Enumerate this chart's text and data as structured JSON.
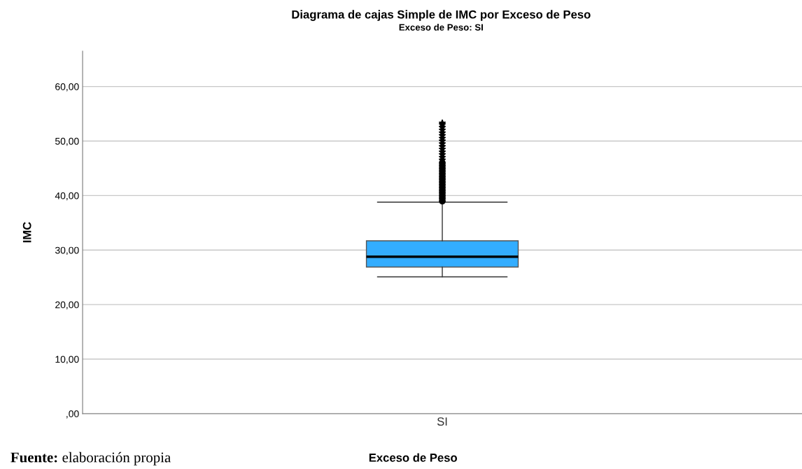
{
  "chart_data": {
    "type": "box",
    "title": "Diagrama de cajas Simple de IMC por Exceso de Peso",
    "subtitle": "Exceso de Peso: SI",
    "xlabel": "Exceso de Peso",
    "ylabel": "IMC",
    "categories": [
      "SI"
    ],
    "color": "#33adff",
    "boxes": [
      {
        "low": 25.1,
        "q1": 26.9,
        "median": 28.8,
        "q3": 31.7,
        "high": 38.8,
        "outliers": [
          39.0,
          39.5,
          40.0,
          40.5,
          41.0,
          41.5,
          42.0,
          42.5,
          43.0,
          43.5,
          44.0,
          44.5,
          45.0,
          45.5,
          46.0,
          46.5,
          47.0,
          47.5,
          48.0,
          48.5,
          49.0,
          49.5,
          50.0,
          50.5,
          51.0,
          51.5,
          52.0,
          52.5,
          53.0,
          53.3
        ]
      }
    ],
    "ylim": [
      0,
      66.5
    ],
    "yticks": [
      {
        "value": 0,
        "label": ",00"
      },
      {
        "value": 10,
        "label": "10,00"
      },
      {
        "value": 20,
        "label": "20,00"
      },
      {
        "value": 30,
        "label": "30,00"
      },
      {
        "value": 40,
        "label": "40,00"
      },
      {
        "value": 50,
        "label": "50,00"
      },
      {
        "value": 60,
        "label": "60,00"
      }
    ],
    "grid": "y",
    "annotations": [
      "Fuente: elaboración propia"
    ]
  }
}
